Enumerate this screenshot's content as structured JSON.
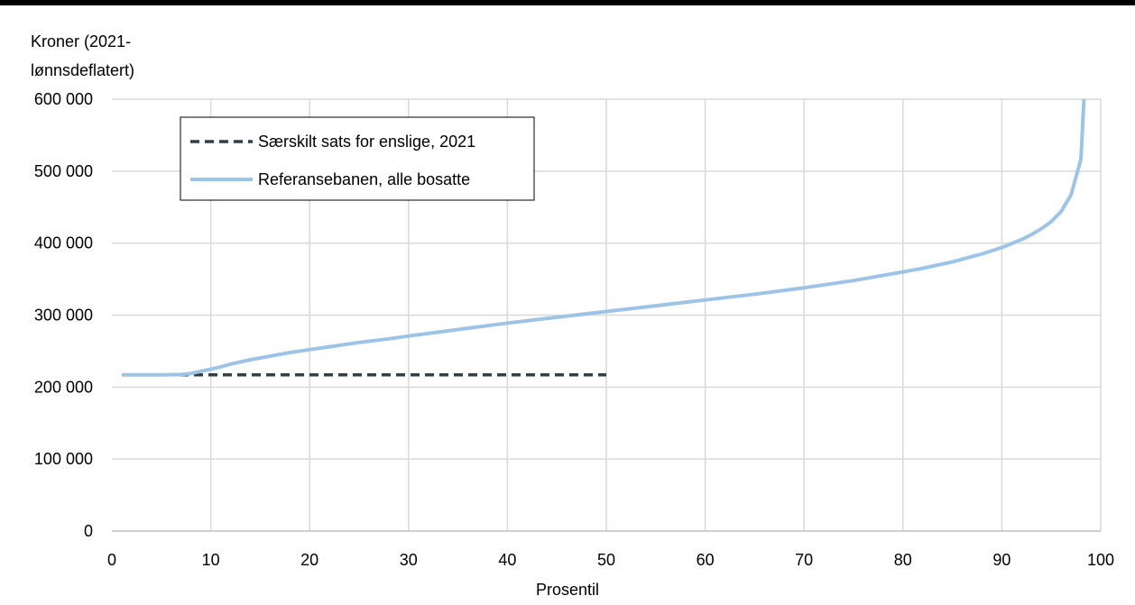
{
  "chart_data": {
    "type": "line",
    "ylabel": "Kroner (2021-\nlønnsdeflatert)",
    "xlabel": "Prosentil",
    "xlim": [
      0,
      100
    ],
    "ylim": [
      0,
      600000
    ],
    "x_ticks": [
      0,
      10,
      20,
      30,
      40,
      50,
      60,
      70,
      80,
      90,
      100
    ],
    "y_ticks": [
      0,
      100000,
      200000,
      300000,
      400000,
      500000,
      600000
    ],
    "y_tick_labels": [
      "0",
      "100 000",
      "200 000",
      "300 000",
      "400 000",
      "500 000",
      "600 000"
    ],
    "grid": true,
    "legend_position": "top-left",
    "series": [
      {
        "name": "Særskilt sats for enslige, 2021",
        "style": "dashed",
        "color": "#2f4049",
        "x": [
          1,
          50
        ],
        "y": [
          217000,
          217000
        ]
      },
      {
        "name": "Referansebanen, alle bosatte",
        "style": "solid",
        "color": "#9dc3e6",
        "x": [
          1,
          3,
          5,
          7,
          8,
          9,
          10,
          11,
          12,
          14,
          16,
          18,
          20,
          22,
          25,
          28,
          30,
          35,
          40,
          45,
          50,
          55,
          60,
          65,
          70,
          75,
          80,
          82,
          85,
          88,
          90,
          92,
          93,
          94,
          95,
          96,
          97,
          98,
          98.3
        ],
        "y": [
          217000,
          217000,
          217000,
          217500,
          219000,
          222000,
          225000,
          228000,
          232000,
          238000,
          243000,
          248000,
          252000,
          256000,
          262000,
          267000,
          271000,
          280000,
          289000,
          297000,
          305000,
          313000,
          321000,
          329000,
          338000,
          348000,
          360000,
          365000,
          374000,
          385000,
          394000,
          405000,
          412000,
          420000,
          430000,
          444000,
          467000,
          517000,
          600000
        ]
      }
    ]
  }
}
